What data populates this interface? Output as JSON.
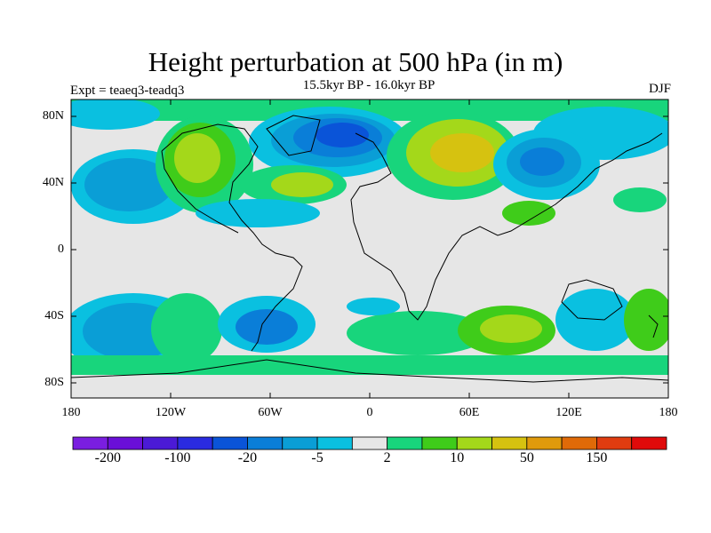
{
  "plot": {
    "title": "Height perturbation at 500 hPa (in m)",
    "subtitle": "15.5kyr BP - 16.0kyr BP",
    "left_label": "Expt = teaeq3-teadq3",
    "right_label": "DJF"
  },
  "axes": {
    "lat_ticks": [
      "80N",
      "40N",
      "0",
      "40S",
      "80S"
    ],
    "lon_ticks": [
      "180",
      "120W",
      "60W",
      "0",
      "60E",
      "120E",
      "180"
    ]
  },
  "colorbar": {
    "colors": [
      "#7a1ee0",
      "#6a0fd8",
      "#4b1ad6",
      "#2a2be0",
      "#0a54d8",
      "#0a7ed8",
      "#0a9ed6",
      "#0ac0e0",
      "#e6e6e6",
      "#18d57c",
      "#3fcc1a",
      "#a4d81a",
      "#d6c210",
      "#e09a0c",
      "#e06a08",
      "#e03c10",
      "#e00a0a"
    ],
    "labels": [
      "-200",
      "-100",
      "-20",
      "-5",
      "2",
      "10",
      "50",
      "150"
    ]
  },
  "map": {
    "background_color": "#e6e6e6",
    "coastline_color": "#000000"
  }
}
